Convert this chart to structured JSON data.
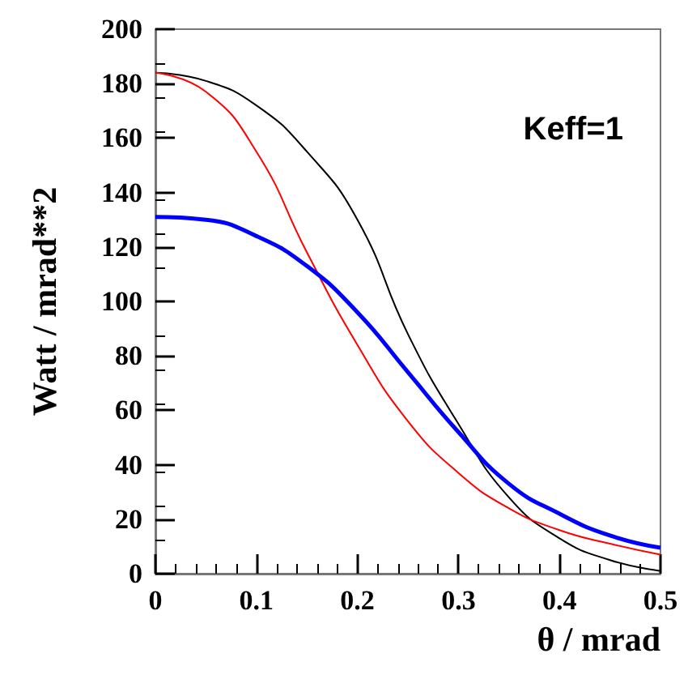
{
  "chart_data": {
    "type": "line",
    "xlabel": "θ / mrad",
    "ylabel": "Watt / mrad**2",
    "annotations": [
      "Keff=1"
    ],
    "x": [
      0,
      0.05,
      0.1,
      0.15,
      0.2,
      0.25,
      0.3,
      0.35,
      0.4,
      0.45,
      0.5
    ],
    "series": [
      {
        "color": "#000000",
        "values": [
          184,
          181,
          172,
          155,
          130,
          88,
          55,
          28,
          13,
          5,
          1
        ]
      },
      {
        "color": "#ff0000",
        "values": [
          184,
          177,
          155,
          118,
          84,
          56,
          37,
          24,
          16,
          11,
          7
        ]
      },
      {
        "color": "#0000ff",
        "values": [
          131,
          130,
          124,
          113,
          96,
          74,
          52,
          33,
          22,
          14,
          9.5
        ]
      }
    ],
    "xlim": [
      0,
      0.5
    ],
    "xticks": [
      0,
      0.1,
      0.2,
      0.3,
      0.4,
      0.5
    ],
    "ylim": [
      0,
      200
    ],
    "yticks": [
      0,
      20,
      40,
      60,
      80,
      100,
      120,
      140,
      160,
      180,
      200
    ],
    "grid": false,
    "marker": "none",
    "line_style": "solid"
  }
}
